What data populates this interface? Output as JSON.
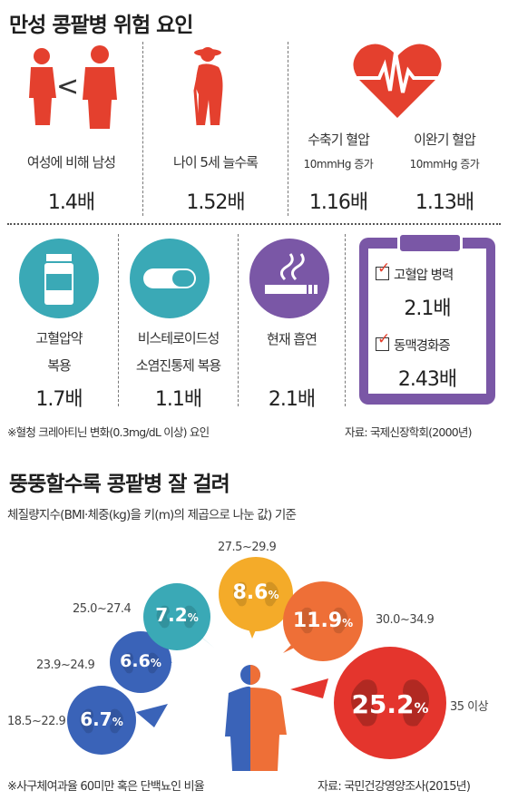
{
  "top": {
    "title": "만성 콩팥병 위험 요인",
    "items": [
      {
        "label": "여성에 비해 남성",
        "value": "1.4배"
      },
      {
        "label": "나이 5세 늘수록",
        "value": "1.52배"
      },
      {
        "label": "수축기 혈압",
        "sub": "10mmHg 증가",
        "value": "1.16배"
      },
      {
        "label": "이완기 혈압",
        "sub": "10mmHg 증가",
        "value": "1.13배"
      }
    ],
    "lt_symbol": "<",
    "items2": [
      {
        "label1": "고혈압약",
        "label2": "복용",
        "value": "1.7배"
      },
      {
        "label1": "비스테로이드성",
        "label2": "소염진통제 복용",
        "value": "1.1배"
      },
      {
        "label1": "현재 흡연",
        "value": "2.1배"
      }
    ],
    "clipboard": {
      "items": [
        {
          "label": "고혈압 병력",
          "value": "2.1배"
        },
        {
          "label": "동맥경화증",
          "value": "2.43배"
        }
      ]
    },
    "footnote": "※혈청 크레아티닌 변화(0.3mg/dL 이상) 요인",
    "source": "자료: 국제신장학회(2000년)"
  },
  "bottom": {
    "title": "뚱뚱할수록 콩팥병 잘 걸려",
    "subtitle": "체질량지수(BMI·체중(kg)을 키(m)의 제곱으로 나눈 값) 기준",
    "footnote": "※사구체여과율 60미만 혹은 단백뇨인 비율",
    "source": "자료: 국민건강영양조사(2015년)",
    "bubbles": [
      {
        "range": "18.5~22.9",
        "pct": "6.7",
        "color": "#3a63b8"
      },
      {
        "range": "23.9~24.9",
        "pct": "6.6",
        "color": "#3a63b8"
      },
      {
        "range": "25.0~27.4",
        "pct": "7.2",
        "color": "#3aa9b6"
      },
      {
        "range": "27.5~29.9",
        "pct": "8.6",
        "color": "#f4ab29"
      },
      {
        "range": "30.0~34.9",
        "pct": "11.9",
        "color": "#ee6f37"
      },
      {
        "range": "35 이상",
        "pct": "25.2",
        "color": "#e4352d"
      }
    ],
    "pct_sign": "%"
  },
  "colors": {
    "red": "#e4402e",
    "teal": "#3aa9b6",
    "purple": "#7a57a6",
    "brown": "#7b4a2e"
  }
}
